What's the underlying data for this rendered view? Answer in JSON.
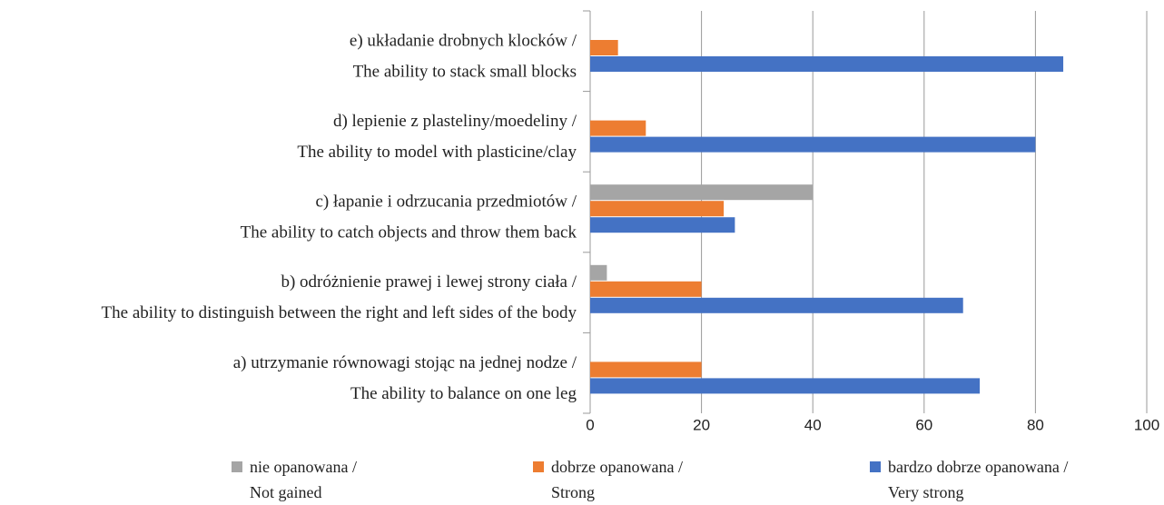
{
  "chart_data": {
    "type": "bar",
    "orientation": "horizontal",
    "categories": [
      [
        "e) układanie drobnych klocków /",
        "The ability to stack small blocks"
      ],
      [
        "d) lepienie z plasteliny/moedeliny /",
        "The ability to model with plasticine/clay"
      ],
      [
        "c) łapanie i odrzucania przedmiotów /",
        "The ability to catch objects and throw them back"
      ],
      [
        "b) odróżnienie prawej i lewej strony ciała /",
        "The ability to distinguish between the right and left sides of the body"
      ],
      [
        "a) utrzymanie równowagi stojąc na jednej nodze /",
        "The ability to balance on one leg"
      ]
    ],
    "series": [
      {
        "name": [
          "nie opanowana /",
          "Not gained"
        ],
        "color": "#a5a5a5",
        "values": [
          0,
          0,
          40,
          3,
          0
        ]
      },
      {
        "name": [
          "dobrze opanowana /",
          "Strong"
        ],
        "color": "#ed7d31",
        "values": [
          5,
          10,
          24,
          20,
          20
        ]
      },
      {
        "name": [
          "bardzo dobrze opanowana /",
          "Very strong"
        ],
        "color": "#4472c4",
        "values": [
          85,
          80,
          26,
          67,
          70
        ]
      }
    ],
    "xlim": [
      0,
      100
    ],
    "xticks": [
      0,
      20,
      40,
      60,
      80,
      100
    ],
    "grid": true,
    "legend": "bottom"
  }
}
